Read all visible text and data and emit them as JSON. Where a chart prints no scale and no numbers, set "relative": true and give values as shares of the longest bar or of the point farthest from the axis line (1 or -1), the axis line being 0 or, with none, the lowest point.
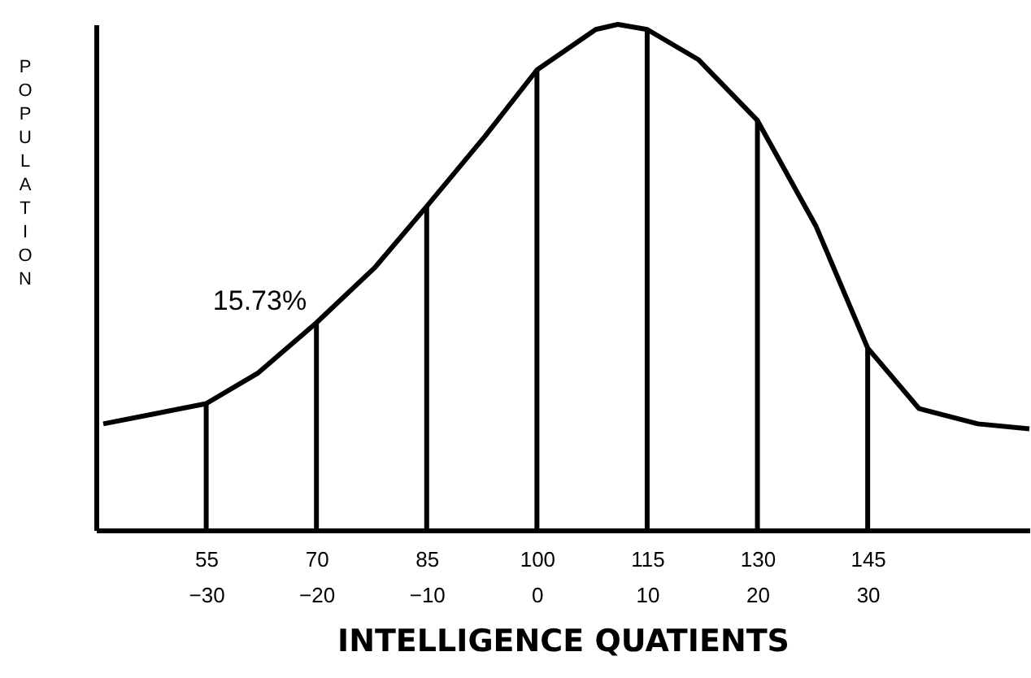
{
  "chart_data": {
    "type": "line",
    "relative": true,
    "xlabel": "INTELLIGENCE  QUATIENTS",
    "ylabel": "POPULATION",
    "xlim": [
      40,
      167
    ],
    "xticks": [
      55,
      70,
      85,
      100,
      115,
      130,
      145
    ],
    "x2lim": [
      -40,
      44.67
    ],
    "x2ticks": [
      -30,
      -20,
      -10,
      0,
      10,
      20,
      30
    ],
    "grid": false,
    "marker": "none",
    "line_style": "solid",
    "annotations": [
      {
        "text": "15.73%",
        "x": 70,
        "y": 0.41
      }
    ],
    "series": [
      {
        "color": "#000000",
        "x": [
          41,
          48,
          55,
          62,
          70,
          78,
          85,
          93,
          100,
          108,
          111,
          115,
          122,
          130,
          138,
          145,
          152,
          160,
          167
        ],
        "values": [
          0.21,
          0.23,
          0.25,
          0.31,
          0.41,
          0.52,
          0.64,
          0.78,
          0.91,
          0.99,
          1.0,
          0.99,
          0.93,
          0.81,
          0.6,
          0.36,
          0.24,
          0.21,
          0.2
        ]
      },
      {
        "type": "bar",
        "color": "#000000",
        "x": [
          55,
          70,
          85,
          100,
          115,
          130,
          145
        ],
        "values": [
          0.25,
          0.41,
          0.64,
          0.91,
          0.99,
          0.81,
          0.36
        ]
      }
    ]
  }
}
